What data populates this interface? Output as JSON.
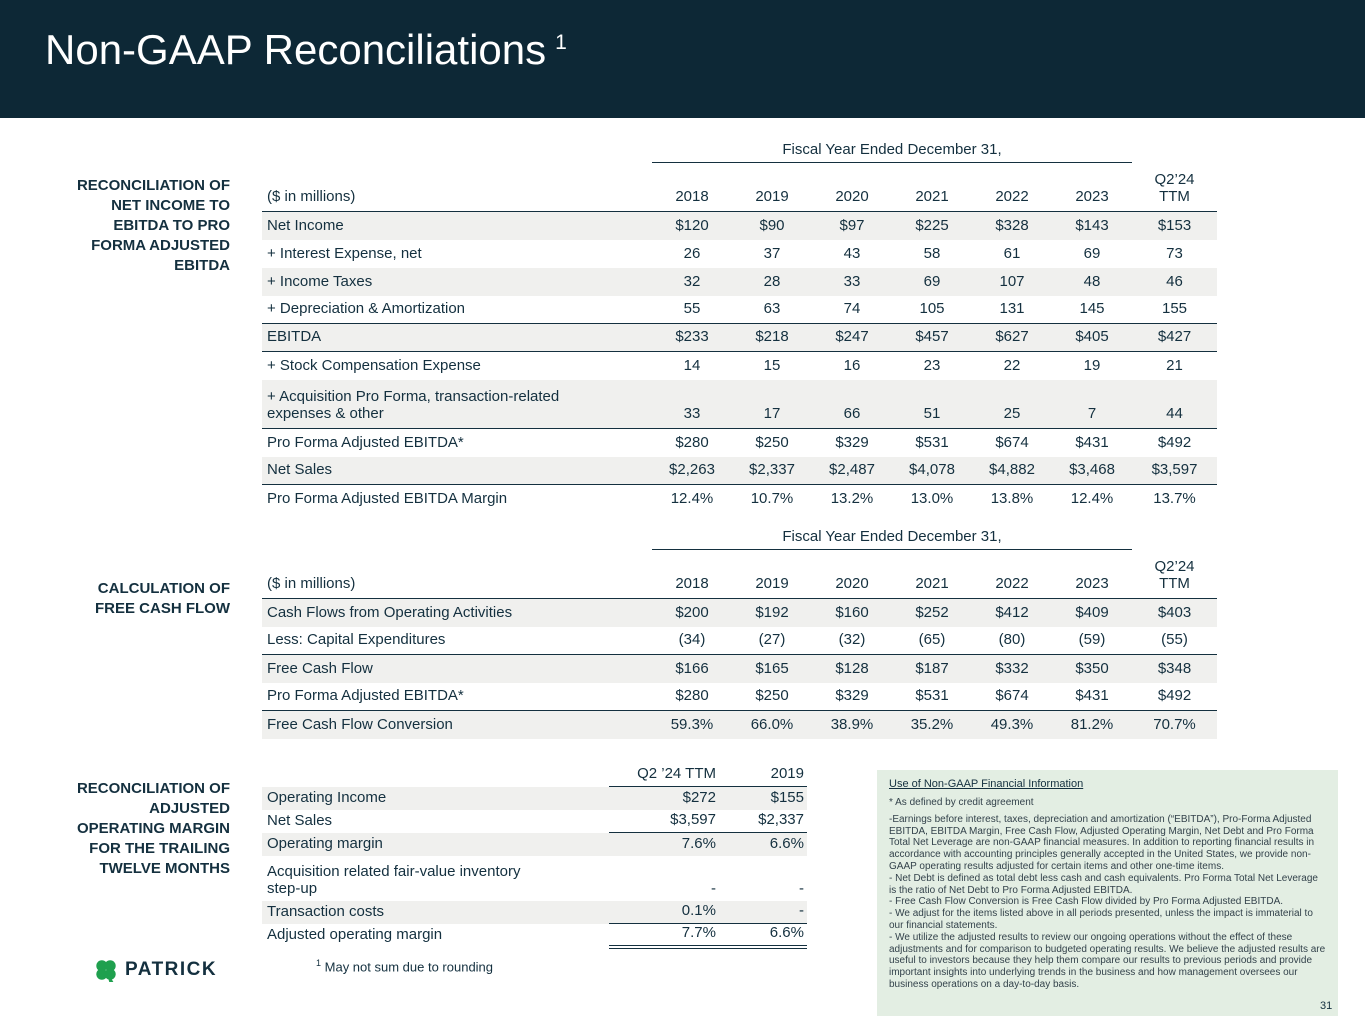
{
  "slide": {
    "title": "Non-GAAP Reconciliations",
    "title_sup": "1",
    "footnote_sup": "1",
    "footnote": "May not sum due to rounding",
    "page_number": "31"
  },
  "logo": {
    "text": "PATRICK"
  },
  "colors": {
    "header_bg": "#0d2836",
    "ink": "#14303f",
    "row_shade": "#f0f0ee",
    "disclosure_bg": "#e3eee3",
    "logo_green": "#1fa04e"
  },
  "ebitda_table": {
    "section_label": "RECONCILIATION OF\nNET INCOME TO\nEBITDA TO PRO\nFORMA ADJUSTED\nEBITDA",
    "span_header": "Fiscal Year Ended December 31,",
    "unit_label": "($ in millions)",
    "columns": [
      "2018",
      "2019",
      "2020",
      "2021",
      "2022",
      "2023",
      "Q2’24\nTTM"
    ],
    "rows": [
      {
        "label": "Net Income",
        "values": [
          "$120",
          "$90",
          "$97",
          "$225",
          "$328",
          "$143",
          "$153"
        ],
        "shade": true
      },
      {
        "label": "+ Interest Expense, net",
        "values": [
          "26",
          "37",
          "43",
          "58",
          "61",
          "69",
          "73"
        ],
        "shade": false
      },
      {
        "label": "+ Income Taxes",
        "values": [
          "32",
          "28",
          "33",
          "69",
          "107",
          "48",
          "46"
        ],
        "shade": true
      },
      {
        "label": "+ Depreciation & Amortization",
        "values": [
          "55",
          "63",
          "74",
          "105",
          "131",
          "145",
          "155"
        ],
        "shade": false,
        "rule_below": true
      },
      {
        "label": "EBITDA",
        "values": [
          "$233",
          "$218",
          "$247",
          "$457",
          "$627",
          "$405",
          "$427"
        ],
        "shade": true,
        "rule_below": true
      },
      {
        "label": "+ Stock Compensation Expense",
        "values": [
          "14",
          "15",
          "16",
          "23",
          "22",
          "19",
          "21"
        ],
        "shade": false
      },
      {
        "label": "+ Acquisition Pro Forma, transaction-related\nexpenses & other",
        "values": [
          "33",
          "17",
          "66",
          "51",
          "25",
          "7",
          "44"
        ],
        "shade": true,
        "rule_below": true,
        "tall": true
      },
      {
        "label": "Pro Forma Adjusted EBITDA*",
        "values": [
          "$280",
          "$250",
          "$329",
          "$531",
          "$674",
          "$431",
          "$492"
        ],
        "shade": false
      },
      {
        "label": "Net Sales",
        "values": [
          "$2,263",
          "$2,337",
          "$2,487",
          "$4,078",
          "$4,882",
          "$3,468",
          "$3,597"
        ],
        "shade": true,
        "rule_below": true
      },
      {
        "label": "Pro Forma Adjusted EBITDA Margin",
        "values": [
          "12.4%",
          "10.7%",
          "13.2%",
          "13.0%",
          "13.8%",
          "12.4%",
          "13.7%"
        ],
        "shade": false
      }
    ]
  },
  "fcf_table": {
    "section_label": "CALCULATION OF\nFREE CASH FLOW",
    "span_header": "Fiscal Year Ended December 31,",
    "unit_label": "($ in millions)",
    "columns": [
      "2018",
      "2019",
      "2020",
      "2021",
      "2022",
      "2023",
      "Q2’24\nTTM"
    ],
    "rows": [
      {
        "label": "Cash Flows from Operating Activities",
        "values": [
          "$200",
          "$192",
          "$160",
          "$252",
          "$412",
          "$409",
          "$403"
        ],
        "shade": true
      },
      {
        "label": "Less: Capital Expenditures",
        "values": [
          "(34)",
          "(27)",
          "(32)",
          "(65)",
          "(80)",
          "(59)",
          "(55)"
        ],
        "shade": false,
        "rule_below": true
      },
      {
        "label": "Free Cash Flow",
        "values": [
          "$166",
          "$165",
          "$128",
          "$187",
          "$332",
          "$350",
          "$348"
        ],
        "shade": true
      },
      {
        "label": "Pro Forma Adjusted EBITDA*",
        "values": [
          "$280",
          "$250",
          "$329",
          "$531",
          "$674",
          "$431",
          "$492"
        ],
        "shade": false,
        "rule_below": true
      },
      {
        "label": "Free Cash Flow Conversion",
        "values": [
          "59.3%",
          "66.0%",
          "38.9%",
          "35.2%",
          "49.3%",
          "81.2%",
          "70.7%"
        ],
        "shade": true
      }
    ]
  },
  "margin_table": {
    "section_label": "RECONCILIATION OF\nADJUSTED\nOPERATING MARGIN\nFOR THE TRAILING\nTWELVE MONTHS",
    "columns": [
      "Q2 ’24 TTM",
      "2019"
    ],
    "rows": [
      {
        "label": "Operating Income",
        "values": [
          "$272",
          "$155"
        ],
        "shade": true
      },
      {
        "label": "Net Sales",
        "values": [
          "$3,597",
          "$2,337"
        ],
        "shade": false,
        "vrule": "single"
      },
      {
        "label": "Operating margin",
        "values": [
          "7.6%",
          "6.6%"
        ],
        "shade": true
      },
      {
        "label": "Acquisition related fair-value inventory\nstep-up",
        "values": [
          "-",
          "-"
        ],
        "shade": false,
        "tall": true
      },
      {
        "label": "Transaction costs",
        "values": [
          "0.1%",
          "-"
        ],
        "shade": true,
        "vrule": "single"
      },
      {
        "label": "Adjusted operating margin",
        "values": [
          "7.7%",
          "6.6%"
        ],
        "shade": false,
        "vrule": "double"
      }
    ]
  },
  "disclosure": {
    "heading": "Use of Non-GAAP Financial Information",
    "paragraphs": [
      "* As defined by credit agreement",
      "-Earnings before interest, taxes, depreciation and amortization (“EBITDA”), Pro-Forma Adjusted EBITDA, EBITDA Margin, Free Cash Flow, Adjusted Operating Margin, Net Debt and Pro Forma Total Net Leverage are non-GAAP financial measures. In addition to reporting financial results in accordance with accounting principles generally accepted in the United States, we provide non-GAAP operating results adjusted for certain items and other one-time items.",
      "- Net Debt is defined as total debt less cash and cash equivalents. Pro Forma Total Net Leverage is the ratio of Net Debt to Pro Forma Adjusted EBITDA.",
      "- Free Cash Flow Conversion is Free Cash Flow divided by Pro Forma Adjusted EBITDA.",
      "- We adjust for the items listed above in all periods presented, unless the impact is immaterial to our financial statements.",
      "- We utilize the adjusted results to review our ongoing operations without the effect of these adjustments and for comparison to budgeted operating results. We believe the adjusted results are useful to investors because they help them compare our results to previous periods and provide important insights into underlying trends in the business and how management oversees our business operations on a day-to-day basis."
    ]
  }
}
